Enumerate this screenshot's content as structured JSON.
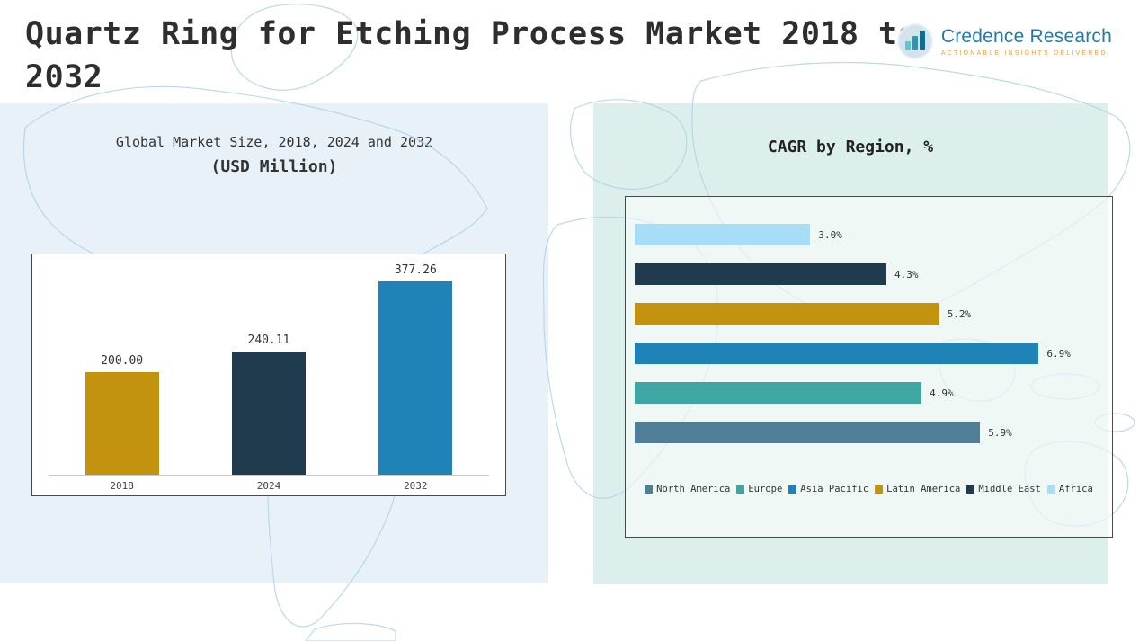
{
  "header": {
    "title": "Quartz Ring for Etching Process Market 2018 to 2032",
    "logo": {
      "name": "Credence Research",
      "tagline": "Actionable Insights Delivered"
    }
  },
  "chart_data": [
    {
      "type": "bar",
      "orientation": "vertical",
      "title_line1": "Global Market Size, 2018, 2024 and 2032",
      "title_line2": "(USD Million)",
      "categories": [
        "2018",
        "2024",
        "2032"
      ],
      "values": [
        200.0,
        240.11,
        377.26
      ],
      "value_labels": [
        "200.00",
        "240.11",
        "377.26"
      ],
      "colors": [
        "#C3920E",
        "#1F3B4D",
        "#2083B8"
      ],
      "ylim": [
        0,
        420
      ],
      "grid": false,
      "legend_position": "none"
    },
    {
      "type": "bar",
      "orientation": "horizontal",
      "title": "CAGR by Region, %",
      "categories": [
        "Africa",
        "Middle East",
        "Latin America",
        "Asia Pacific",
        "Europe",
        "North America"
      ],
      "values": [
        3.0,
        4.3,
        5.2,
        6.9,
        4.9,
        5.9
      ],
      "value_labels": [
        "3.0%",
        "4.3%",
        "5.2%",
        "6.9%",
        "4.9%",
        "5.9%"
      ],
      "colors": [
        "#A7DDF6",
        "#1F3B4D",
        "#C3920E",
        "#2083B8",
        "#3FA7A3",
        "#4E7F97"
      ],
      "xlim": [
        0,
        8
      ],
      "grid": false,
      "legend_position": "bottom",
      "legend": [
        {
          "label": "North America",
          "color": "#4E7F97"
        },
        {
          "label": "Europe",
          "color": "#3FA7A3"
        },
        {
          "label": "Asia Pacific",
          "color": "#2083B8"
        },
        {
          "label": "Latin America",
          "color": "#C3920E"
        },
        {
          "label": "Middle East",
          "color": "#1F3B4D"
        },
        {
          "label": "Africa",
          "color": "#A7DDF6"
        }
      ]
    }
  ]
}
